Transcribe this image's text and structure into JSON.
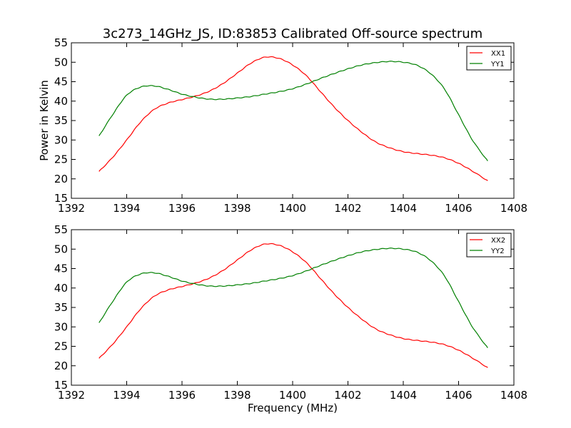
{
  "figure": {
    "title": "3c273_14GHz_JS, ID:83853 Calibrated Off-source spectrum"
  },
  "chart_data": [
    {
      "type": "line",
      "title": "3c273_14GHz_JS, ID:83853 Calibrated Off-source spectrum",
      "xlabel": "",
      "ylabel": "Power in Kelvin",
      "xlim": [
        1392,
        1408
      ],
      "ylim": [
        15,
        55
      ],
      "xticks": [
        1392,
        1394,
        1396,
        1398,
        1400,
        1402,
        1404,
        1406,
        1408
      ],
      "yticks": [
        15,
        20,
        25,
        30,
        35,
        40,
        45,
        50,
        55
      ],
      "grid": false,
      "legend_position": "top-right",
      "x": [
        1393.0,
        1393.5,
        1394.0,
        1394.5,
        1395.0,
        1395.5,
        1396.0,
        1396.5,
        1397.0,
        1397.5,
        1398.0,
        1398.5,
        1399.0,
        1399.5,
        1400.0,
        1400.5,
        1401.0,
        1401.5,
        1402.0,
        1402.5,
        1403.0,
        1403.5,
        1404.0,
        1404.5,
        1405.0,
        1405.5,
        1406.0,
        1406.5,
        1407.05
      ],
      "series": [
        {
          "name": "XX1",
          "color": "#ff0000",
          "values": [
            21.9,
            25.6,
            30.0,
            34.6,
            37.9,
            39.5,
            40.4,
            41.3,
            42.6,
            44.6,
            47.2,
            49.8,
            51.3,
            51.0,
            49.3,
            46.5,
            42.5,
            38.5,
            35.0,
            32.0,
            29.5,
            28.0,
            27.0,
            26.5,
            26.1,
            25.4,
            24.0,
            22.0,
            19.5
          ]
        },
        {
          "name": "YY1",
          "color": "#008000",
          "values": [
            31.0,
            36.6,
            41.5,
            43.6,
            43.9,
            43.0,
            41.8,
            41.0,
            40.5,
            40.5,
            40.8,
            41.2,
            41.8,
            42.4,
            43.2,
            44.4,
            45.8,
            47.1,
            48.3,
            49.3,
            49.9,
            50.2,
            50.0,
            49.2,
            47.0,
            43.0,
            36.5,
            30.0,
            24.6
          ]
        }
      ]
    },
    {
      "type": "line",
      "title": "",
      "xlabel": "Frequency (MHz)",
      "ylabel": "",
      "xlim": [
        1392,
        1408
      ],
      "ylim": [
        15,
        55
      ],
      "xticks": [
        1392,
        1394,
        1396,
        1398,
        1400,
        1402,
        1404,
        1406,
        1408
      ],
      "yticks": [
        15,
        20,
        25,
        30,
        35,
        40,
        45,
        50,
        55
      ],
      "grid": false,
      "legend_position": "top-right",
      "x": [
        1393.0,
        1393.5,
        1394.0,
        1394.5,
        1395.0,
        1395.5,
        1396.0,
        1396.5,
        1397.0,
        1397.5,
        1398.0,
        1398.5,
        1399.0,
        1399.5,
        1400.0,
        1400.5,
        1401.0,
        1401.5,
        1402.0,
        1402.5,
        1403.0,
        1403.5,
        1404.0,
        1404.5,
        1405.0,
        1405.5,
        1406.0,
        1406.5,
        1407.05
      ],
      "series": [
        {
          "name": "XX2",
          "color": "#ff0000",
          "values": [
            21.9,
            25.6,
            30.0,
            34.6,
            37.9,
            39.5,
            40.4,
            41.3,
            42.6,
            44.6,
            47.2,
            49.8,
            51.3,
            51.0,
            49.3,
            46.5,
            42.5,
            38.5,
            35.0,
            32.0,
            29.5,
            28.0,
            27.0,
            26.5,
            26.1,
            25.4,
            24.0,
            22.0,
            19.5
          ]
        },
        {
          "name": "YY2",
          "color": "#008000",
          "values": [
            31.0,
            36.6,
            41.5,
            43.6,
            43.9,
            43.0,
            41.8,
            41.0,
            40.5,
            40.5,
            40.8,
            41.2,
            41.8,
            42.4,
            43.2,
            44.4,
            45.8,
            47.1,
            48.3,
            49.3,
            49.9,
            50.2,
            50.0,
            49.2,
            47.0,
            43.0,
            36.5,
            30.0,
            24.6
          ]
        }
      ]
    }
  ]
}
